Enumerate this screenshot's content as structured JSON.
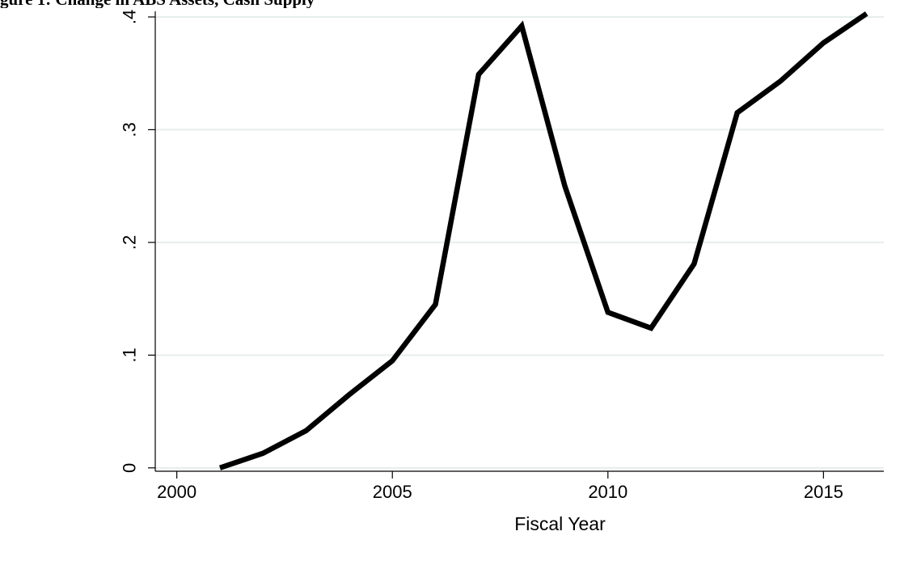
{
  "title": "gure 1: Change in ABS Assets, Cash Supply",
  "chart_data": {
    "type": "line",
    "title": "gure 1: Change in ABS Assets, Cash Supply",
    "xlabel": "Fiscal Year",
    "ylabel": "",
    "x": [
      2001,
      2002,
      2003,
      2004,
      2005,
      2006,
      2007,
      2008,
      2009,
      2010,
      2011,
      2012,
      2013,
      2014,
      2015,
      2016
    ],
    "series": [
      {
        "name": "",
        "values": [
          0.0,
          0.013,
          0.033,
          0.065,
          0.095,
          0.145,
          0.349,
          0.392,
          0.25,
          0.138,
          0.124,
          0.181,
          0.315,
          0.343,
          0.377,
          0.403
        ]
      }
    ],
    "xlim": [
      1999.5,
      2016.4
    ],
    "ylim": [
      -0.003,
      0.405
    ],
    "xticks": [
      2000,
      2005,
      2010,
      2015
    ],
    "xtick_labels": [
      "2000",
      "2005",
      "2010",
      "2015"
    ],
    "yticks": [
      0,
      0.1,
      0.2,
      0.3,
      0.4
    ],
    "ytick_labels": [
      "0",
      ".1",
      ".2",
      ".3",
      ".4"
    ],
    "grid": "horizontal",
    "legend": "none",
    "line_color": "#000000",
    "grid_color": "#e6eeee"
  }
}
